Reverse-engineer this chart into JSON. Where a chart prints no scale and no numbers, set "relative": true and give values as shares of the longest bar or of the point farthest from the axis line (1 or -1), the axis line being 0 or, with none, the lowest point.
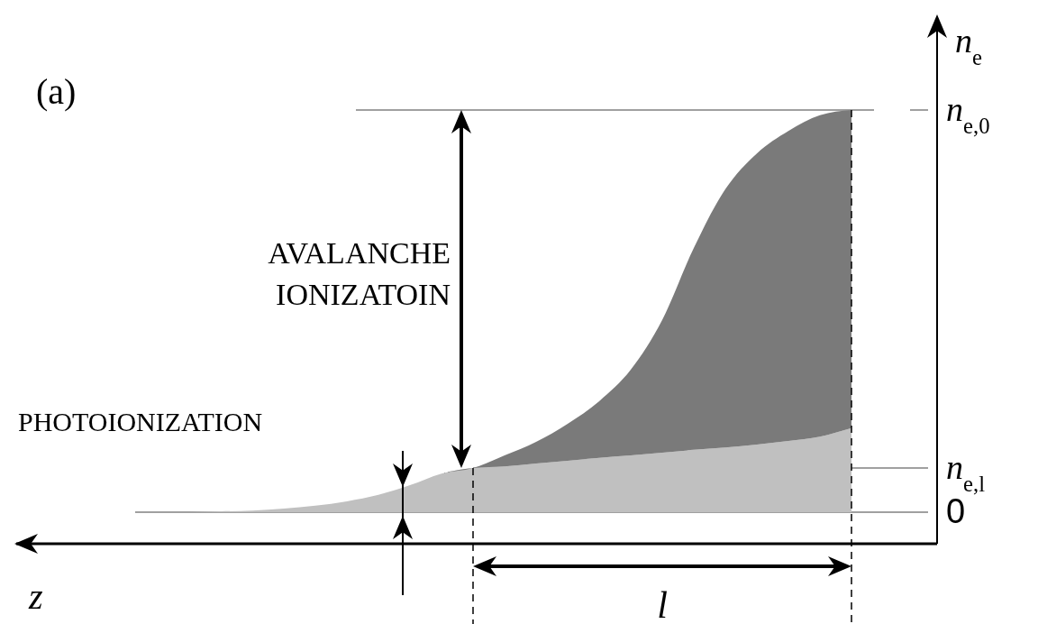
{
  "chart_data": {
    "type": "area",
    "stacked": true,
    "relative": true,
    "xlabel": "z",
    "ylabel": "n$_{e}$",
    "categories": [
      null,
      null,
      null,
      null,
      null,
      null,
      null,
      null,
      null,
      null,
      null,
      null,
      null,
      null,
      null,
      null,
      null,
      null,
      null,
      null,
      null,
      null
    ],
    "series": [
      {
        "color": "#c0c0c0",
        "values": [
          0,
          0.002,
          0.004,
          0.009,
          0.016,
          0.027,
          0.043,
          0.067,
          0.096,
          0.11,
          0.114,
          0.121,
          0.128,
          0.135,
          0.141,
          0.148,
          0.155,
          0.161,
          0.168,
          0.177,
          0.188,
          0.209
        ]
      },
      {
        "color": "#7a7a7a",
        "values": [
          0,
          0,
          0,
          0,
          0,
          0,
          0,
          0,
          0,
          0,
          0.027,
          0.054,
          0.092,
          0.141,
          0.213,
          0.33,
          0.502,
          0.642,
          0.724,
          0.771,
          0.799,
          0.791
        ]
      }
    ],
    "ref_lines": [
      {
        "axis": "y",
        "value": 1,
        "label": "n$_{e,0}$",
        "color": "#a0a0a0"
      },
      {
        "axis": "y",
        "value": 0.11,
        "label": "n$_{e,l}$",
        "color": "#a0a0a0"
      },
      {
        "axis": "y",
        "value": 0,
        "label": "0",
        "color": "#a0a0a0"
      }
    ],
    "annotations": [
      "(a)",
      "AVALANCHE\nIONIZATOIN",
      "PHOTOIONIZATION",
      "l"
    ]
  }
}
